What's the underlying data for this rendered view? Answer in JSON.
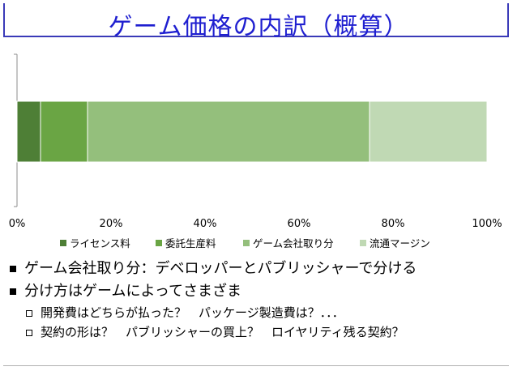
{
  "slide": {
    "title": "ゲーム価格の内訳（概算）"
  },
  "chart_data": {
    "type": "bar",
    "orientation": "horizontal",
    "stacked": "percent",
    "categories": [
      ""
    ],
    "series": [
      {
        "name": "ライセンス料",
        "values": [
          5
        ],
        "color": "#4e7f36"
      },
      {
        "name": "委託生産料",
        "values": [
          10
        ],
        "color": "#6aa544"
      },
      {
        "name": "ゲーム会社取り分",
        "values": [
          60
        ],
        "color": "#94bf7c"
      },
      {
        "name": "流通マージン",
        "values": [
          25
        ],
        "color": "#c0d9b4"
      }
    ],
    "xlim": [
      0,
      100
    ],
    "x_ticks": [
      "0%",
      "20%",
      "40%",
      "60%",
      "80%",
      "100%"
    ],
    "grid": false,
    "legend": "bottom"
  },
  "bullets": [
    {
      "text": "ゲーム会社取り分：デベロッパーとパブリッシャーで分ける",
      "sub": []
    },
    {
      "text": "分け方はゲームによってさまざま",
      "sub": [
        "開発費はどちらが払った？　パッケージ製造費は？．．．",
        "契約の形は？　パブリッシャーの買上？　ロイヤリティ残る契約？"
      ]
    }
  ]
}
